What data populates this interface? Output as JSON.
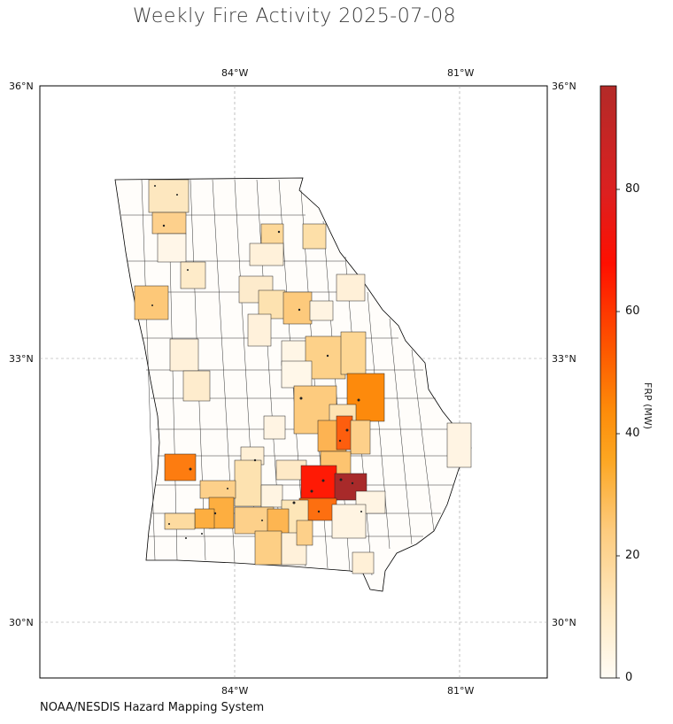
{
  "title": "Weekly Fire Activity 2025-07-08",
  "source": "NOAA/NESDIS Hazard Mapping System",
  "map": {
    "lon_ticks": [
      "84°W",
      "81°W"
    ],
    "lat_ticks": [
      "36°N",
      "33°N",
      "30°N"
    ]
  },
  "colorbar": {
    "label": "FRP (MW)",
    "ticks": [
      "0",
      "20",
      "40",
      "60",
      "80"
    ],
    "range": [
      0,
      96
    ],
    "colors": [
      "#fff9ec",
      "#fde6b4",
      "#fdcb7d",
      "#fdb047",
      "#fd8c0a",
      "#fd5a00",
      "#ff1a00",
      "#ee1b13",
      "#b32a28"
    ]
  },
  "highlighted_counties": [
    {
      "frp": 92,
      "color": "#a82a2a"
    },
    {
      "frp": 68,
      "color": "#ff1a05"
    },
    {
      "frp": 50,
      "color": "#fd5e0e"
    },
    {
      "frp": 46,
      "color": "#fd7c10"
    },
    {
      "frp": 42,
      "color": "#fd8a0c"
    },
    {
      "frp": 36,
      "color": "#fd9b1e"
    }
  ]
}
